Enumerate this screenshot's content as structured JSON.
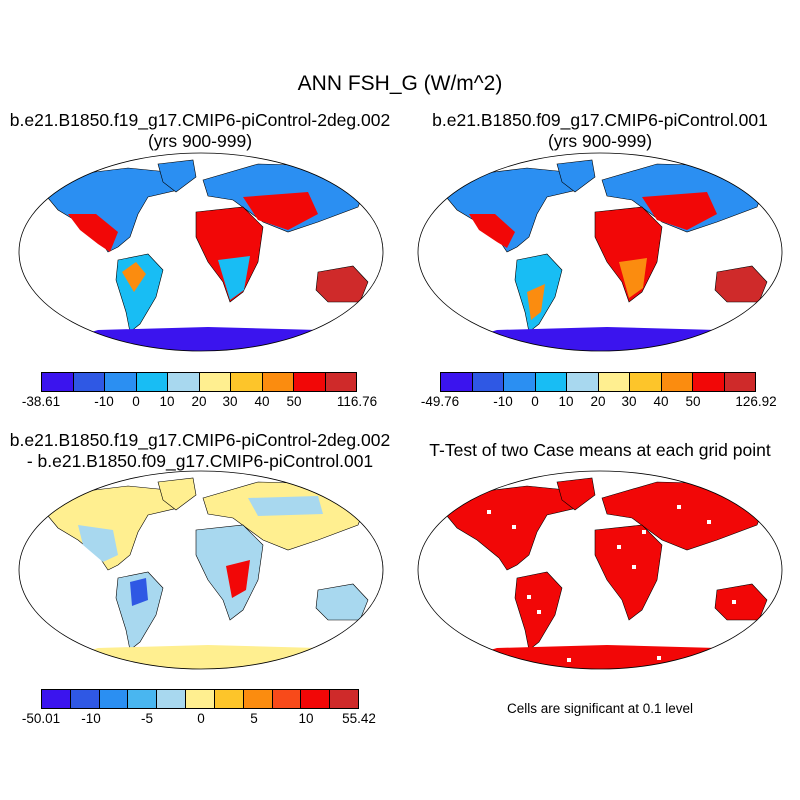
{
  "title": "ANN FSH_G (W/m^2)",
  "panels": [
    {
      "title_line1": "b.e21.B1850.f19_g17.CMIP6-piControl-2deg.002",
      "title_line2": "(yrs 900-999)",
      "colorbar": {
        "colors": [
          "#3b14ee",
          "#2f58e4",
          "#2b8ff2",
          "#18bdf4",
          "#a8d8ef",
          "#ffef90",
          "#fdc52a",
          "#fb8c0f",
          "#f20707",
          "#cf2a2a"
        ],
        "labels": [
          "-38.61",
          "-10",
          "0",
          "10",
          "20",
          "30",
          "40",
          "50",
          "116.76"
        ]
      }
    },
    {
      "title_line1": "b.e21.B1850.f09_g17.CMIP6-piControl.001",
      "title_line2": "(yrs 900-999)",
      "colorbar": {
        "colors": [
          "#3b14ee",
          "#2f58e4",
          "#2b8ff2",
          "#18bdf4",
          "#a8d8ef",
          "#ffef90",
          "#fdc52a",
          "#fb8c0f",
          "#f20707",
          "#cf2a2a"
        ],
        "labels": [
          "-49.76",
          "-10",
          "0",
          "10",
          "20",
          "30",
          "40",
          "50",
          "126.92"
        ]
      }
    },
    {
      "title_line1": "b.e21.B1850.f19_g17.CMIP6-piControl-2deg.002",
      "title_line2": "- b.e21.B1850.f09_g17.CMIP6-piControl.001",
      "colorbar": {
        "colors": [
          "#3b14ee",
          "#2f58e4",
          "#2b8ff2",
          "#49b6f0",
          "#a8d8ef",
          "#ffef90",
          "#fdc52a",
          "#fb8c0f",
          "#f84a1a",
          "#f20707",
          "#cf2a2a"
        ],
        "labels": [
          "-50.01",
          "-10",
          "-5",
          "0",
          "5",
          "10",
          "55.42"
        ]
      }
    },
    {
      "title_line1": "T-Test of two Case means at each grid point",
      "note": "Cells are significant at 0.1 level"
    }
  ]
}
